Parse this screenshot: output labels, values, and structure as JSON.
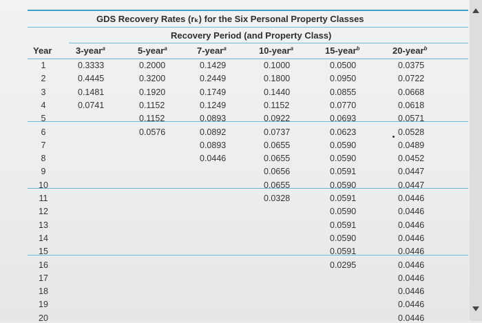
{
  "title": "GDS Recovery Rates (rₖ) for the Six Personal Property Classes",
  "subtitle": "Recovery Period (and Property Class)",
  "columns": {
    "year": "Year",
    "y3": "3-year",
    "y3_note": "a",
    "y5": "5-year",
    "y5_note": "a",
    "y7": "7-year",
    "y7_note": "a",
    "y10": "10-year",
    "y10_note": "a",
    "y15": "15-year",
    "y15_note": "b",
    "y20": "20-year",
    "y20_note": "b"
  },
  "years": [
    "1",
    "2",
    "3",
    "4",
    "5",
    "6",
    "7",
    "8",
    "9",
    "10",
    "11",
    "12",
    "13",
    "14",
    "15",
    "16",
    "17",
    "18",
    "19",
    "20"
  ],
  "rates": {
    "y3": [
      "0.3333",
      "0.4445",
      "0.1481",
      "0.0741"
    ],
    "y5": [
      "0.2000",
      "0.3200",
      "0.1920",
      "0.1152",
      "0.1152",
      "0.0576"
    ],
    "y7": [
      "0.1429",
      "0.2449",
      "0.1749",
      "0.1249",
      "0.0893",
      "0.0892",
      "0.0893",
      "0.0446"
    ],
    "y10": [
      "0.1000",
      "0.1800",
      "0.1440",
      "0.1152",
      "0.0922",
      "0.0737",
      "0.0655",
      "0.0655",
      "0.0656",
      "0.0655",
      "0.0328"
    ],
    "y15": [
      "0.0500",
      "0.0950",
      "0.0855",
      "0.0770",
      "0.0693",
      "0.0623",
      "0.0590",
      "0.0590",
      "0.0591",
      "0.0590",
      "0.0591",
      "0.0590",
      "0.0591",
      "0.0590",
      "0.0591",
      "0.0295"
    ],
    "y20": [
      "0.0375",
      "0.0722",
      "0.0668",
      "0.0618",
      "0.0571",
      "0.0528",
      "0.0489",
      "0.0452",
      "0.0447",
      "0.0447",
      "0.0446",
      "0.0446",
      "0.0446",
      "0.0446",
      "0.0446",
      "0.0446",
      "0.0446",
      "0.0446",
      "0.0446",
      "0.0446"
    ]
  }
}
